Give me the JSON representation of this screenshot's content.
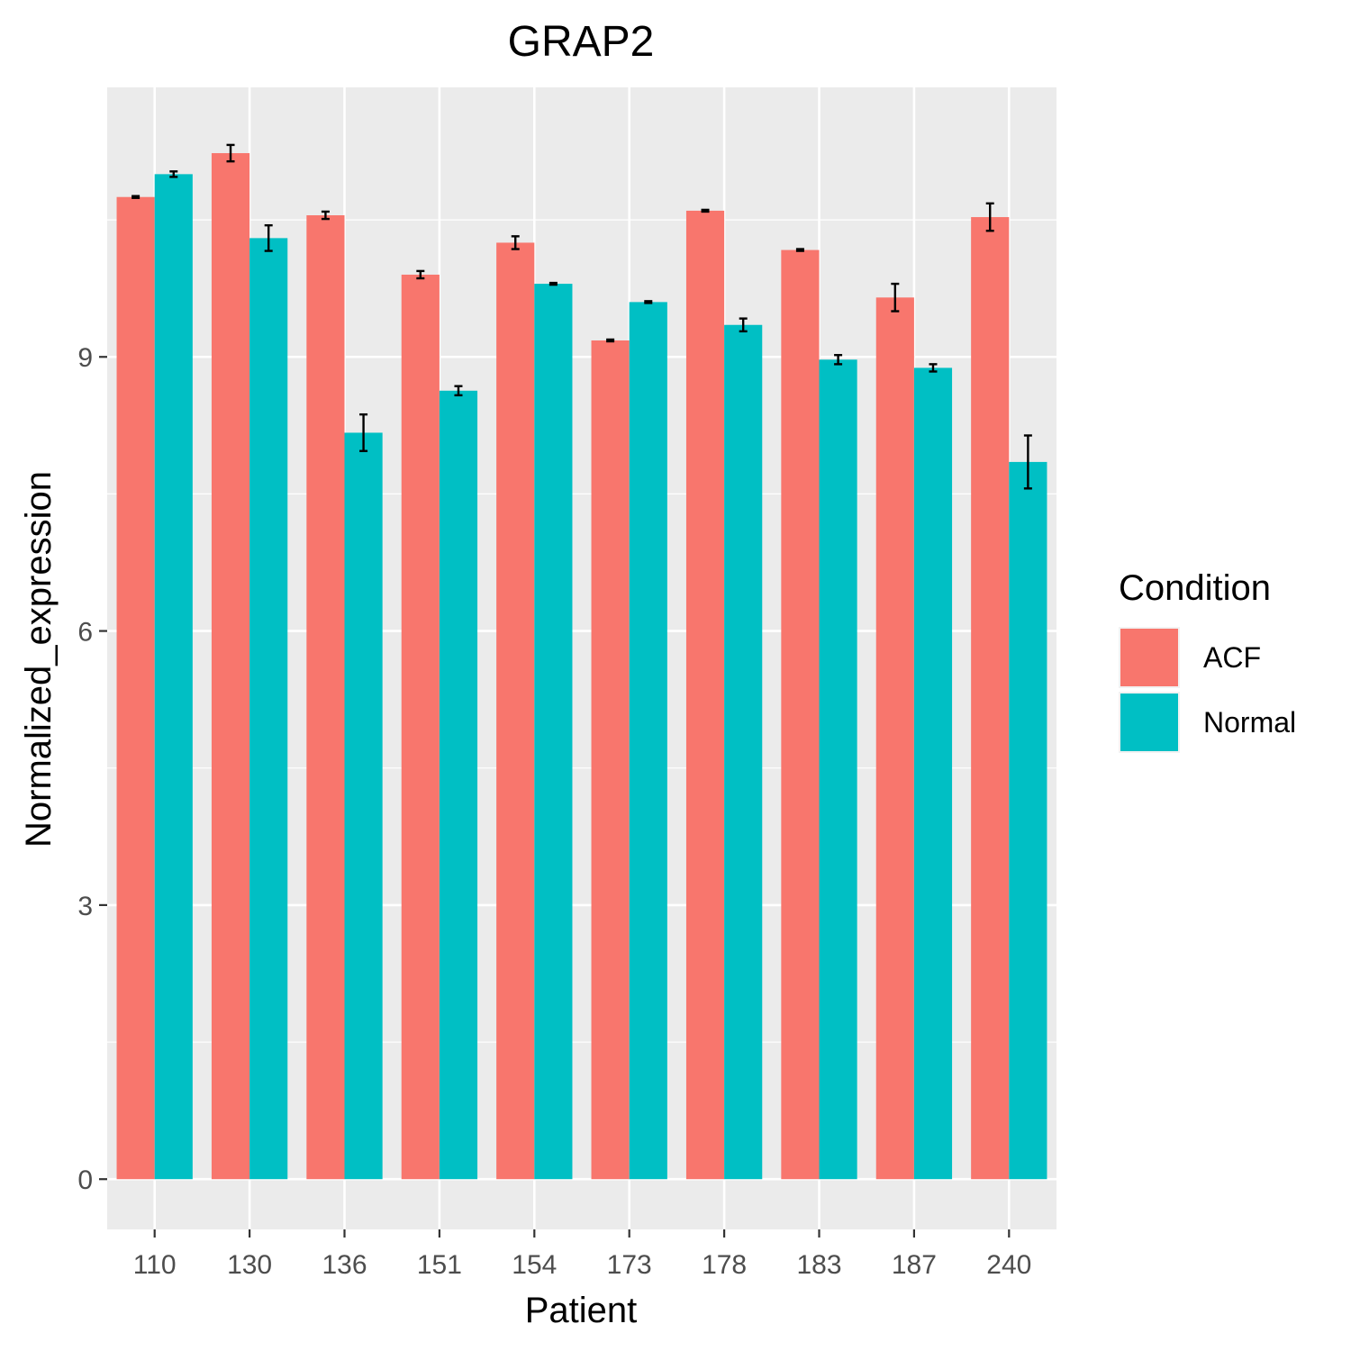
{
  "chart_data": {
    "type": "bar",
    "title": "GRAP2",
    "xlabel": "Patient",
    "ylabel": "Normalized_expression",
    "categories": [
      "110",
      "130",
      "136",
      "151",
      "154",
      "173",
      "178",
      "183",
      "187",
      "240"
    ],
    "series": [
      {
        "name": "ACF",
        "color": "#F8766D",
        "values": [
          10.75,
          11.23,
          10.55,
          9.9,
          10.25,
          9.18,
          10.6,
          10.17,
          9.65,
          10.53
        ],
        "error": [
          0.01,
          0.09,
          0.04,
          0.04,
          0.07,
          0.01,
          0.01,
          0.01,
          0.15,
          0.15
        ]
      },
      {
        "name": "Normal",
        "color": "#00BFC4",
        "values": [
          11.0,
          10.3,
          8.17,
          8.63,
          9.8,
          9.6,
          9.35,
          8.97,
          8.88,
          7.85
        ],
        "error": [
          0.03,
          0.14,
          0.2,
          0.05,
          0.01,
          0.01,
          0.07,
          0.05,
          0.04,
          0.29
        ]
      }
    ],
    "ylim": [
      -0.55,
      11.95
    ],
    "yticks": [
      "0",
      "3",
      "6",
      "9"
    ],
    "legend": {
      "title": "Condition",
      "position": "right"
    },
    "grid": true,
    "panel_background": "#EBEBEB"
  }
}
